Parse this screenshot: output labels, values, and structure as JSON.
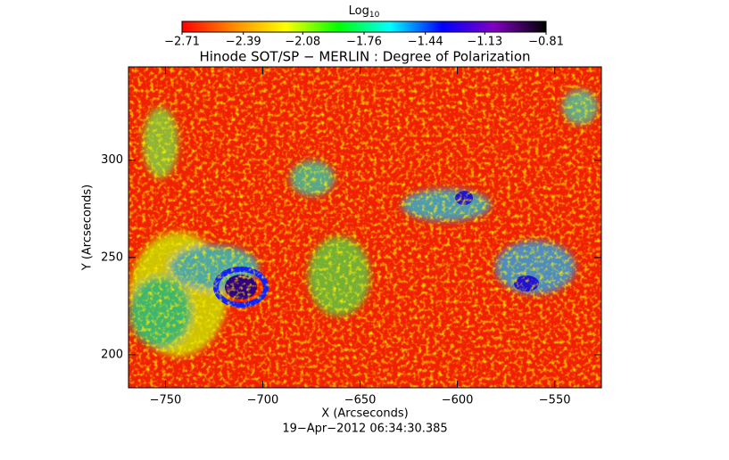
{
  "chart_data": {
    "type": "image",
    "title": "Hinode SOT/SP − MERLIN : Degree of Polarization",
    "xlabel": "X (Arcseconds)",
    "ylabel": "Y (Arcseconds)",
    "footer": "19−Apr−2012 06:34:30.385",
    "xlim": [
      -769,
      -526
    ],
    "ylim": [
      183,
      348
    ],
    "xticks": [
      {
        "value": -750,
        "label": "−750"
      },
      {
        "value": -700,
        "label": "−700"
      },
      {
        "value": -650,
        "label": "−650"
      },
      {
        "value": -600,
        "label": "−600"
      },
      {
        "value": -550,
        "label": "−550"
      }
    ],
    "yticks": [
      200,
      250,
      300
    ],
    "colorbar": {
      "label": "Log",
      "label_subscript": "10",
      "lim": [
        -2.71,
        -0.81
      ],
      "ticks": [
        {
          "value": -2.71,
          "label": "−2.71"
        },
        {
          "value": -2.39,
          "label": "−2.39"
        },
        {
          "value": -2.08,
          "label": "−2.08"
        },
        {
          "value": -1.76,
          "label": "−1.76"
        },
        {
          "value": -1.44,
          "label": "−1.44"
        },
        {
          "value": -1.13,
          "label": "−1.13"
        },
        {
          "value": -0.81,
          "label": "−0.81"
        }
      ],
      "colormap": [
        "#ff0000",
        "#ff8c00",
        "#ffff00",
        "#00ff00",
        "#00ffff",
        "#0000ff",
        "#8000c0",
        "#000000"
      ]
    }
  }
}
